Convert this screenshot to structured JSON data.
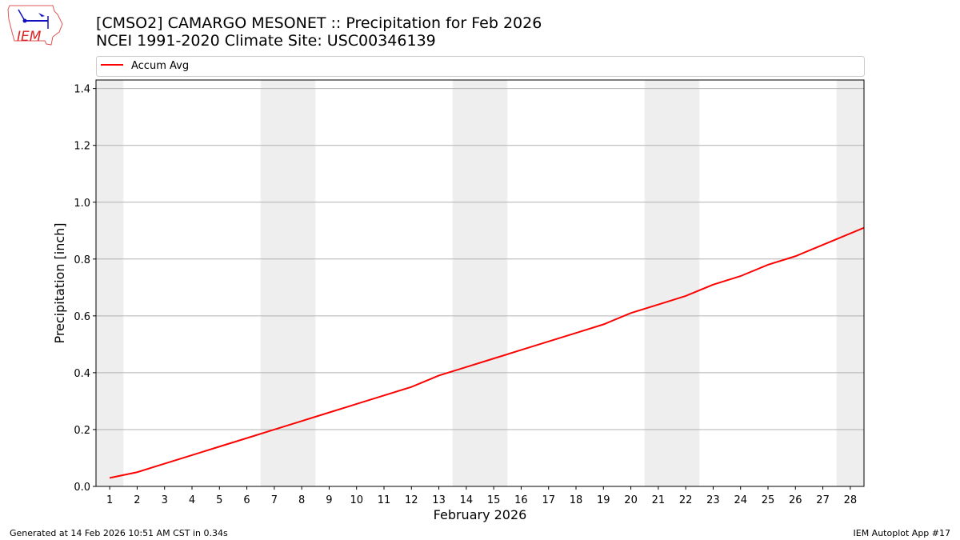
{
  "title_line1": "[CMSO2] CAMARGO MESONET :: Precipitation for Feb 2026",
  "title_line2": "NCEI 1991-2020 Climate Site: USC00346139",
  "logo_text": "IEM",
  "footer_left": "Generated at 14 Feb 2026 10:51 AM CST in 0.34s",
  "footer_right": "IEM Autoplot App #17",
  "chart_data": {
    "type": "line",
    "xlabel": "February 2026",
    "ylabel": "Precipitation [inch]",
    "xlim": [
      0.5,
      28.5
    ],
    "ylim": [
      0,
      1.43
    ],
    "xticks": [
      1,
      2,
      3,
      4,
      5,
      6,
      7,
      8,
      9,
      10,
      11,
      12,
      13,
      14,
      15,
      16,
      17,
      18,
      19,
      20,
      21,
      22,
      23,
      24,
      25,
      26,
      27,
      28
    ],
    "yticks": [
      "0.0",
      "0.2",
      "0.4",
      "0.6",
      "0.8",
      "1.0",
      "1.2",
      "1.4"
    ],
    "grid": "y",
    "legend_placement": "top",
    "weekend_shading": [
      [
        0.5,
        1.5
      ],
      [
        6.5,
        8.5
      ],
      [
        13.5,
        15.5
      ],
      [
        20.5,
        22.5
      ],
      [
        27.5,
        28.5
      ]
    ],
    "shade_color": "#eeeeee",
    "series": [
      {
        "name": "Accum Avg",
        "color": "#ff0000",
        "x": [
          1,
          2,
          3,
          4,
          5,
          6,
          7,
          8,
          9,
          10,
          11,
          12,
          13,
          14,
          15,
          16,
          17,
          18,
          19,
          20,
          21,
          22,
          23,
          24,
          25,
          26,
          27,
          28,
          29
        ],
        "values": [
          0.03,
          0.05,
          0.08,
          0.11,
          0.14,
          0.17,
          0.2,
          0.23,
          0.26,
          0.29,
          0.32,
          0.35,
          0.39,
          0.42,
          0.45,
          0.48,
          0.51,
          0.54,
          0.57,
          0.61,
          0.64,
          0.67,
          0.71,
          0.74,
          0.78,
          0.81,
          0.85,
          0.89,
          0.93
        ]
      }
    ]
  }
}
